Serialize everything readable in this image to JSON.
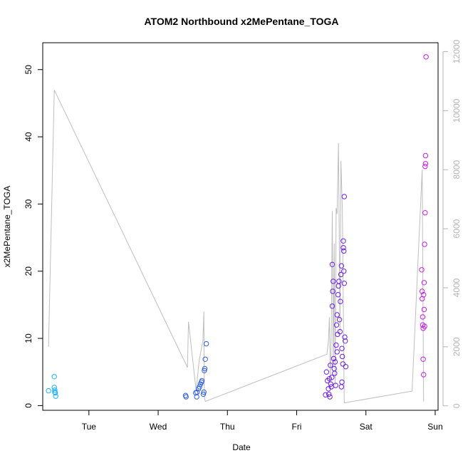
{
  "chart_data": {
    "type": "scatter",
    "title": "ATOM2 Northbound x2MePentane_TOGA",
    "xlabel": "Date",
    "ylabel": "x2MePentane_TOGA",
    "x_axis": {
      "kind": "date",
      "range": [
        "2016-08-01T08:00",
        "2016-08-07T01:00"
      ],
      "ticks": [
        {
          "label": "Tue",
          "value": "2016-08-02T00:00"
        },
        {
          "label": "Wed",
          "value": "2016-08-03T00:00"
        },
        {
          "label": "Thu",
          "value": "2016-08-04T00:00"
        },
        {
          "label": "Fri",
          "value": "2016-08-05T00:00"
        },
        {
          "label": "Sat",
          "value": "2016-08-06T00:00"
        },
        {
          "label": "Sun",
          "value": "2016-08-07T00:00"
        }
      ]
    },
    "y_left": {
      "range": [
        -0.7,
        54
      ],
      "ticks": [
        0,
        10,
        20,
        30,
        40,
        50
      ]
    },
    "y_right": {
      "range": [
        -150,
        12300
      ],
      "ticks": [
        0,
        2000,
        4000,
        6000,
        8000,
        10000,
        12000
      ],
      "color": "#b4b4b4"
    },
    "grid": false,
    "legend": "none",
    "altitude_line": {
      "color": "#bebebe",
      "points": [
        [
          "2016-08-01T10:00",
          2000
        ],
        [
          "2016-08-01T12:00",
          10700
        ],
        [
          "2016-08-03T10:10",
          1300
        ],
        [
          "2016-08-03T10:30",
          2850
        ],
        [
          "2016-08-03T13:10",
          500
        ],
        [
          "2016-08-03T14:10",
          1500
        ],
        [
          "2016-08-03T15:30",
          2200
        ],
        [
          "2016-08-03T15:50",
          3200
        ],
        [
          "2016-08-03T16:00",
          300
        ],
        [
          "2016-08-03T16:20",
          150
        ],
        [
          "2016-08-05T10:30",
          1750
        ],
        [
          "2016-08-05T11:00",
          2200
        ],
        [
          "2016-08-05T11:20",
          3000
        ],
        [
          "2016-08-05T11:40",
          900
        ],
        [
          "2016-08-05T12:00",
          2500
        ],
        [
          "2016-08-05T12:20",
          6600
        ],
        [
          "2016-08-05T12:40",
          1300
        ],
        [
          "2016-08-05T13:00",
          5500
        ],
        [
          "2016-08-05T13:20",
          700
        ],
        [
          "2016-08-05T13:40",
          6700
        ],
        [
          "2016-08-05T14:00",
          6500
        ],
        [
          "2016-08-05T14:30",
          8900
        ],
        [
          "2016-08-05T15:00",
          2500
        ],
        [
          "2016-08-05T15:20",
          8300
        ],
        [
          "2016-08-05T15:50",
          6700
        ],
        [
          "2016-08-05T16:30",
          100
        ],
        [
          "2016-08-06T16:00",
          500
        ],
        [
          "2016-08-06T19:30",
          8000
        ],
        [
          "2016-08-06T20:00",
          150
        ]
      ]
    },
    "series": [
      {
        "color": "#1ab2ff",
        "points": [
          [
            "2016-08-01T10:00",
            2.2
          ],
          [
            "2016-08-01T12:00",
            4.3
          ],
          [
            "2016-08-01T12:00",
            2.7
          ],
          [
            "2016-08-01T12:10",
            2.3
          ],
          [
            "2016-08-01T12:10",
            2.0
          ],
          [
            "2016-08-01T12:20",
            1.9
          ],
          [
            "2016-08-01T12:30",
            1.4
          ]
        ]
      },
      {
        "color": "#2f5fe8",
        "points": [
          [
            "2016-08-03T09:30",
            1.5
          ],
          [
            "2016-08-03T09:40",
            1.3
          ],
          [
            "2016-08-03T13:00",
            1.9
          ],
          [
            "2016-08-03T13:20",
            1.3
          ],
          [
            "2016-08-03T13:30",
            2.0
          ],
          [
            "2016-08-03T14:00",
            2.5
          ],
          [
            "2016-08-03T14:20",
            2.8
          ],
          [
            "2016-08-03T14:40",
            3.2
          ],
          [
            "2016-08-03T15:00",
            3.5
          ],
          [
            "2016-08-03T15:10",
            3.7
          ],
          [
            "2016-08-03T15:40",
            1.7
          ],
          [
            "2016-08-03T15:50",
            2.0
          ],
          [
            "2016-08-03T16:00",
            5.2
          ],
          [
            "2016-08-03T16:10",
            5.5
          ],
          [
            "2016-08-03T16:20",
            6.9
          ],
          [
            "2016-08-03T16:40",
            9.2
          ]
        ]
      },
      {
        "color": "#6f1ee6",
        "points": [
          [
            "2016-08-05T10:00",
            1.6
          ],
          [
            "2016-08-05T10:20",
            5.0
          ],
          [
            "2016-08-05T10:40",
            3.7
          ],
          [
            "2016-08-05T11:00",
            2.5
          ],
          [
            "2016-08-05T11:10",
            1.7
          ],
          [
            "2016-08-05T11:20",
            4.0
          ],
          [
            "2016-08-05T11:30",
            1.3
          ],
          [
            "2016-08-05T11:40",
            6.0
          ],
          [
            "2016-08-05T11:50",
            3.2
          ],
          [
            "2016-08-05T12:00",
            2.8
          ],
          [
            "2016-08-05T12:10",
            4.2
          ],
          [
            "2016-08-05T12:20",
            21.0
          ],
          [
            "2016-08-05T12:20",
            14.8
          ],
          [
            "2016-08-05T12:30",
            17.0
          ],
          [
            "2016-08-05T12:40",
            18.5
          ],
          [
            "2016-08-05T12:50",
            7.0
          ],
          [
            "2016-08-05T13:00",
            5.5
          ],
          [
            "2016-08-05T13:10",
            4.8
          ],
          [
            "2016-08-05T13:20",
            6.5
          ],
          [
            "2016-08-05T13:30",
            3.0
          ],
          [
            "2016-08-05T13:40",
            9.0
          ],
          [
            "2016-08-05T13:50",
            12.0
          ],
          [
            "2016-08-05T14:00",
            13.5
          ],
          [
            "2016-08-05T14:10",
            10.6
          ],
          [
            "2016-08-05T14:20",
            16.5
          ],
          [
            "2016-08-05T14:30",
            17.8
          ],
          [
            "2016-08-05T14:40",
            18.5
          ],
          [
            "2016-08-05T14:50",
            12.8
          ],
          [
            "2016-08-05T15:00",
            11.0
          ],
          [
            "2016-08-05T15:10",
            15.5
          ],
          [
            "2016-08-05T15:20",
            19.5
          ],
          [
            "2016-08-05T15:30",
            20.8
          ],
          [
            "2016-08-05T15:40",
            8.5
          ],
          [
            "2016-08-05T15:50",
            7.3
          ],
          [
            "2016-08-05T16:00",
            6.2
          ],
          [
            "2016-08-05T16:10",
            24.5
          ],
          [
            "2016-08-05T16:10",
            23.5
          ],
          [
            "2016-08-05T16:20",
            23.0
          ],
          [
            "2016-08-05T16:20",
            20.0
          ],
          [
            "2016-08-05T16:30",
            31.1
          ],
          [
            "2016-08-05T16:30",
            18.2
          ],
          [
            "2016-08-05T16:40",
            10.2
          ],
          [
            "2016-08-05T16:50",
            9.6
          ],
          [
            "2016-08-05T17:00",
            5.8
          ],
          [
            "2016-08-05T14:00",
            8.0
          ],
          [
            "2016-08-05T15:30",
            2.8
          ],
          [
            "2016-08-05T15:40",
            3.5
          ]
        ]
      },
      {
        "color": "#c41ee6",
        "points": [
          [
            "2016-08-06T19:20",
            20.2
          ],
          [
            "2016-08-06T19:30",
            17.0
          ],
          [
            "2016-08-06T19:30",
            15.9
          ],
          [
            "2016-08-06T19:40",
            13.2
          ],
          [
            "2016-08-06T19:40",
            12.0
          ],
          [
            "2016-08-06T19:50",
            11.5
          ],
          [
            "2016-08-06T19:50",
            6.9
          ],
          [
            "2016-08-06T20:00",
            4.6
          ],
          [
            "2016-08-06T20:00",
            16.5
          ],
          [
            "2016-08-06T20:10",
            18.3
          ],
          [
            "2016-08-06T20:10",
            14.3
          ],
          [
            "2016-08-06T20:20",
            11.8
          ],
          [
            "2016-08-06T20:20",
            24.0
          ],
          [
            "2016-08-06T20:30",
            28.7
          ],
          [
            "2016-08-06T20:30",
            35.6
          ],
          [
            "2016-08-06T20:40",
            36.0
          ],
          [
            "2016-08-06T20:40",
            37.2
          ],
          [
            "2016-08-06T20:50",
            51.9
          ]
        ]
      }
    ]
  }
}
